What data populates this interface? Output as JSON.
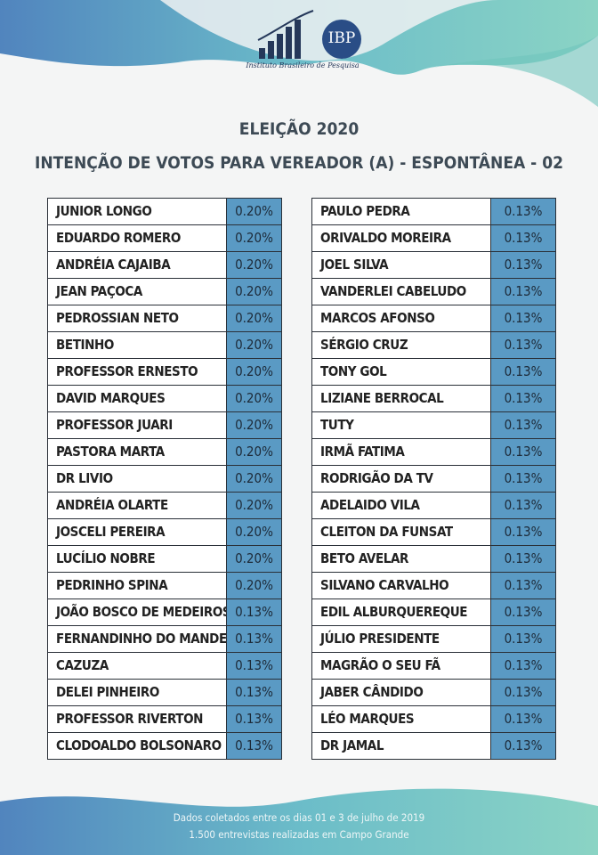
{
  "logo": {
    "name": "IBP",
    "tagline": "Instituto Brasileiro de Pesquisa"
  },
  "header": {
    "title": "ELEIÇÃO 2020",
    "subtitle": "INTENÇÃO DE VOTOS PARA VEREADOR (A) - ESPONTÂNEA - 02"
  },
  "tables": [
    {
      "rows": [
        [
          "JUNIOR LONGO",
          "0.20%"
        ],
        [
          "EDUARDO ROMERO",
          "0.20%"
        ],
        [
          "ANDRÉIA CAJAIBA",
          "0.20%"
        ],
        [
          "JEAN PAÇOCA",
          "0.20%"
        ],
        [
          "PEDROSSIAN NETO",
          "0.20%"
        ],
        [
          "BETINHO",
          "0.20%"
        ],
        [
          "PROFESSOR ERNESTO",
          "0.20%"
        ],
        [
          "DAVID MARQUES",
          "0.20%"
        ],
        [
          "PROFESSOR JUARI",
          "0.20%"
        ],
        [
          "PASTORA MARTA",
          "0.20%"
        ],
        [
          "DR LIVIO",
          "0.20%"
        ],
        [
          "ANDRÉIA OLARTE",
          "0.20%"
        ],
        [
          "JOSCELI PEREIRA",
          "0.20%"
        ],
        [
          "LUCÍLIO NOBRE",
          "0.20%"
        ],
        [
          "PEDRINHO SPINA",
          "0.20%"
        ],
        [
          "JOÃO BOSCO DE MEDEIROS",
          "0.13%"
        ],
        [
          "FERNANDINHO DO MANDETA",
          "0.13%"
        ],
        [
          "CAZUZA",
          "0.13%"
        ],
        [
          "DELEI PINHEIRO",
          "0.13%"
        ],
        [
          "PROFESSOR RIVERTON",
          "0.13%"
        ],
        [
          "CLODOALDO BOLSONARO",
          "0.13%"
        ]
      ]
    },
    {
      "rows": [
        [
          "PAULO PEDRA",
          "0.13%"
        ],
        [
          "ORIVALDO MOREIRA",
          "0.13%"
        ],
        [
          "JOEL SILVA",
          "0.13%"
        ],
        [
          "VANDERLEI CABELUDO",
          "0.13%"
        ],
        [
          "MARCOS AFONSO",
          "0.13%"
        ],
        [
          "SÉRGIO CRUZ",
          "0.13%"
        ],
        [
          "TONY GOL",
          "0.13%"
        ],
        [
          "LIZIANE BERROCAL",
          "0.13%"
        ],
        [
          "TUTY",
          "0.13%"
        ],
        [
          "IRMÃ FATIMA",
          "0.13%"
        ],
        [
          "RODRIGÃO DA TV",
          "0.13%"
        ],
        [
          "ADELAIDO VILA",
          "0.13%"
        ],
        [
          "CLEITON DA FUNSAT",
          "0.13%"
        ],
        [
          "BETO AVELAR",
          "0.13%"
        ],
        [
          "SILVANO CARVALHO",
          "0.13%"
        ],
        [
          "EDIL ALBURQUEREQUE",
          "0.13%"
        ],
        [
          "JÚLIO PRESIDENTE",
          "0.13%"
        ],
        [
          "MAGRÃO O SEU FÃ",
          "0.13%"
        ],
        [
          "JABER CÂNDIDO",
          "0.13%"
        ],
        [
          "LÉO MARQUES",
          "0.13%"
        ],
        [
          "DR JAMAL",
          "0.13%"
        ]
      ]
    }
  ],
  "footer": {
    "lines": [
      "Dados coletados entre os dias 01 e 3 de julho de 2019",
      "1.500 entrevistas realizadas em Campo Grande"
    ]
  }
}
